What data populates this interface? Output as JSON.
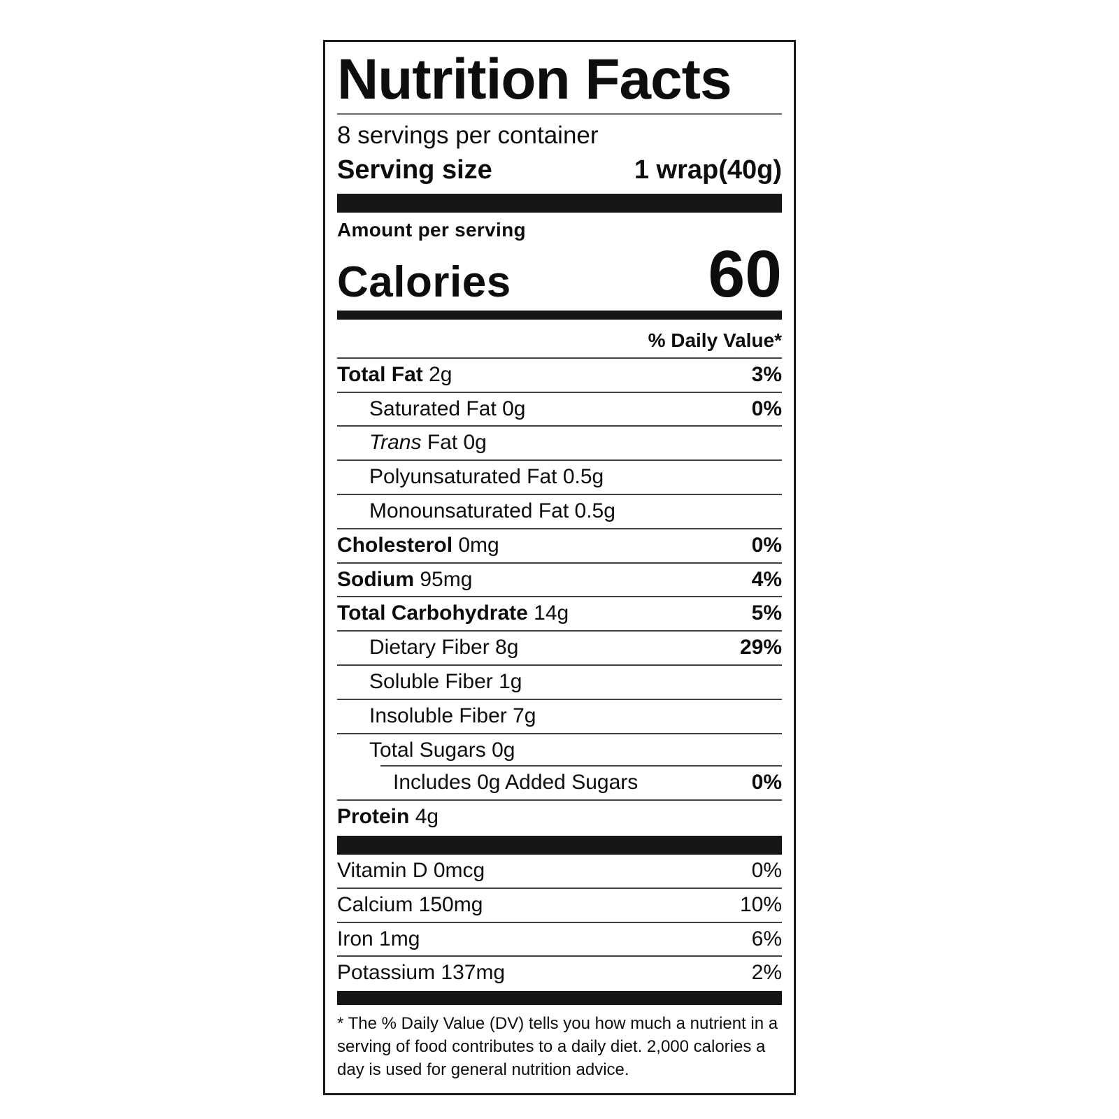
{
  "label": {
    "title": "Nutrition Facts",
    "servings_per_container": "8 servings per container",
    "serving_size": {
      "label": "Serving size",
      "value": "1 wrap(40g)"
    },
    "amount_per_serving": "Amount per serving",
    "calories": {
      "label": "Calories",
      "value": "60"
    },
    "daily_value_header": "% Daily Value*",
    "nutrients": [
      {
        "bold": "Total Fat",
        "rest": "2g",
        "dv": "3%",
        "indent": 0
      },
      {
        "rest": "Saturated Fat 0g",
        "dv": "0%",
        "indent": 1
      },
      {
        "italic": "Trans",
        "rest": "Fat 0g",
        "indent": 1
      },
      {
        "rest": "Polyunsaturated Fat 0.5g",
        "indent": 1
      },
      {
        "rest": "Monounsaturated Fat 0.5g",
        "indent": 1
      },
      {
        "bold": "Cholesterol",
        "rest": "0mg",
        "dv": "0%",
        "indent": 0
      },
      {
        "bold": "Sodium",
        "rest": "95mg",
        "dv": "4%",
        "indent": 0
      },
      {
        "bold": "Total Carbohydrate",
        "rest": "14g",
        "dv": "5%",
        "indent": 0
      },
      {
        "rest": "Dietary Fiber 8g",
        "dv": "29%",
        "indent": 1
      },
      {
        "rest": "Soluble Fiber 1g",
        "indent": 1
      },
      {
        "rest": "Insoluble Fiber 7g",
        "indent": 1
      },
      {
        "rest": "Total Sugars 0g",
        "indent": 1
      },
      {
        "rest": "Includes 0g Added Sugars",
        "dv": "0%",
        "indent": 2,
        "partial_rule": true
      },
      {
        "bold": "Protein",
        "rest": "4g",
        "indent": 0
      }
    ],
    "vitamins": [
      {
        "rest": "Vitamin D 0mcg",
        "dv": "0%"
      },
      {
        "rest": "Calcium 150mg",
        "dv": "10%"
      },
      {
        "rest": "Iron 1mg",
        "dv": "6%"
      },
      {
        "rest": "Potassium 137mg",
        "dv": "2%"
      }
    ],
    "footnote": "* The % Daily Value (DV) tells you how much a nutrient in a serving of food contributes to a daily diet. 2,000 calories a day is used for general nutrition advice."
  },
  "colors": {
    "ink": "#0d0d0d",
    "background": "#ffffff",
    "bar": "#161616",
    "hairline": "#414141"
  }
}
